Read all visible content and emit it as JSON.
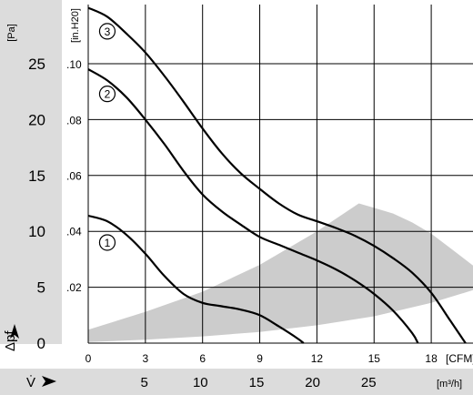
{
  "chart_data": {
    "type": "line",
    "colors": {
      "band": "#dcdcdc",
      "curve": "#000000",
      "operating_area": "#cccccc"
    },
    "y_primary": {
      "unit": "[Pa]",
      "ticks": [
        "0",
        "5",
        "10",
        "15",
        "20",
        "25"
      ],
      "range": [
        0,
        30.3
      ]
    },
    "y_secondary": {
      "unit": "[in.H20]",
      "ticks": [
        ".02",
        ".04",
        ".06",
        ".08",
        ".10"
      ]
    },
    "y_axis_symbol": "Δpf",
    "x_primary": {
      "unit": "[CFM]",
      "ticks": [
        "0",
        "3",
        "6",
        "9",
        "12",
        "15",
        "18"
      ],
      "range": [
        0,
        20.3
      ]
    },
    "x_secondary": {
      "unit": "[m³/h]",
      "ticks": [
        "5",
        "10",
        "15",
        "20",
        "25"
      ]
    },
    "x_axis_symbol": "V̇",
    "grid": true,
    "series": [
      {
        "name": "1",
        "label_at": [
          1.0,
          9.0
        ],
        "x": [
          0,
          1,
          2,
          3,
          4,
          5,
          6,
          7,
          8,
          9,
          10,
          11,
          11.3
        ],
        "y": [
          11.4,
          10.9,
          9.7,
          8.0,
          6.0,
          4.4,
          3.6,
          3.3,
          3.0,
          2.5,
          1.5,
          0.4,
          0
        ]
      },
      {
        "name": "2",
        "label_at": [
          1.0,
          22.3
        ],
        "x": [
          0,
          1,
          2,
          3,
          4,
          5,
          6,
          7,
          8,
          9,
          10,
          11,
          12,
          13,
          14,
          15,
          16,
          17,
          17.3
        ],
        "y": [
          24.5,
          23.5,
          22.0,
          20.0,
          17.8,
          15.4,
          13.3,
          11.8,
          10.6,
          9.5,
          8.8,
          8.1,
          7.4,
          6.6,
          5.6,
          4.4,
          2.9,
          0.9,
          0
        ]
      },
      {
        "name": "3",
        "label_at": [
          1.0,
          27.9
        ],
        "x": [
          0,
          1,
          2,
          3,
          4,
          5,
          6,
          7,
          8,
          9,
          10,
          11,
          12,
          13,
          14,
          15,
          16,
          17,
          18,
          19,
          19.8
        ],
        "y": [
          30.0,
          29.2,
          27.7,
          26.0,
          23.9,
          21.6,
          19.2,
          17.0,
          15.2,
          13.8,
          12.5,
          11.5,
          10.9,
          10.3,
          9.6,
          8.7,
          7.6,
          6.3,
          4.5,
          2.0,
          0
        ]
      }
    ],
    "operating_area": {
      "x": [
        0,
        3,
        6,
        9,
        12,
        14.2,
        15,
        16,
        17,
        18,
        19,
        20.3,
        20.3,
        18,
        15,
        12,
        9,
        6,
        3,
        0
      ],
      "y": [
        1.2,
        2.8,
        4.6,
        7.0,
        10.0,
        12.5,
        12.1,
        11.6,
        10.8,
        9.8,
        8.5,
        6.8,
        4.8,
        3.6,
        2.4,
        1.6,
        1.0,
        0.6,
        0.3,
        0.1
      ]
    }
  }
}
